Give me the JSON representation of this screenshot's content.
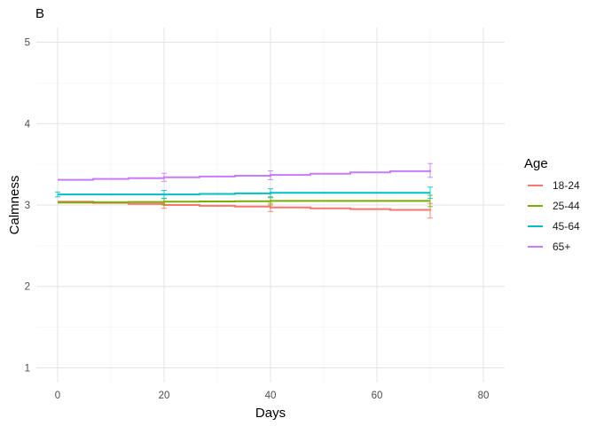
{
  "chart_data": {
    "type": "line",
    "panel_tag": "B",
    "xlabel": "Days",
    "ylabel": "Calmness",
    "xlim": [
      -4,
      84
    ],
    "ylim": [
      0.82,
      5.18
    ],
    "x_ticks": [
      0,
      20,
      40,
      60,
      80
    ],
    "x_tick_labels": [
      "0",
      "20",
      "40",
      "60",
      "80"
    ],
    "x_minor_ticks": [
      10,
      30,
      50,
      70
    ],
    "y_ticks": [
      1,
      2,
      3,
      4,
      5
    ],
    "y_tick_labels": [
      "1",
      "2",
      "3",
      "4",
      "5"
    ],
    "y_minor_ticks": [
      1.5,
      2.5,
      3.5,
      4.5
    ],
    "grid": true,
    "legend": {
      "title": "Age",
      "position": "right"
    },
    "series": [
      {
        "name": "18-24",
        "color": "#F8766D",
        "points": [
          [
            0,
            3.04
          ],
          [
            20,
            3.0
          ],
          [
            40,
            2.97
          ],
          [
            70,
            2.93
          ]
        ],
        "error_bars": [
          {
            "x": 20,
            "low": 2.96,
            "high": 3.04
          },
          {
            "x": 40,
            "low": 2.92,
            "high": 3.02
          },
          {
            "x": 70,
            "low": 2.84,
            "high": 3.02
          }
        ]
      },
      {
        "name": "25-44",
        "color": "#7CAE00",
        "points": [
          [
            0,
            3.03
          ],
          [
            20,
            3.04
          ],
          [
            40,
            3.05
          ],
          [
            70,
            3.05
          ]
        ],
        "error_bars": [
          {
            "x": 20,
            "low": 3.0,
            "high": 3.08
          },
          {
            "x": 40,
            "low": 3.0,
            "high": 3.1
          },
          {
            "x": 70,
            "low": 2.98,
            "high": 3.12
          }
        ]
      },
      {
        "name": "45-64",
        "color": "#00BFC4",
        "points": [
          [
            0,
            3.13
          ],
          [
            20,
            3.13
          ],
          [
            40,
            3.15
          ],
          [
            70,
            3.15
          ]
        ],
        "error_bars": [
          {
            "x": 0,
            "low": 3.1,
            "high": 3.16
          },
          {
            "x": 20,
            "low": 3.08,
            "high": 3.18
          },
          {
            "x": 40,
            "low": 3.09,
            "high": 3.2
          },
          {
            "x": 70,
            "low": 3.08,
            "high": 3.22
          }
        ]
      },
      {
        "name": "65+",
        "color": "#C77CFF",
        "points": [
          [
            0,
            3.31
          ],
          [
            20,
            3.34
          ],
          [
            40,
            3.37
          ],
          [
            70,
            3.43
          ]
        ],
        "error_bars": [
          {
            "x": 20,
            "low": 3.29,
            "high": 3.39
          },
          {
            "x": 40,
            "low": 3.31,
            "high": 3.42
          },
          {
            "x": 70,
            "low": 3.34,
            "high": 3.51
          }
        ]
      }
    ]
  }
}
